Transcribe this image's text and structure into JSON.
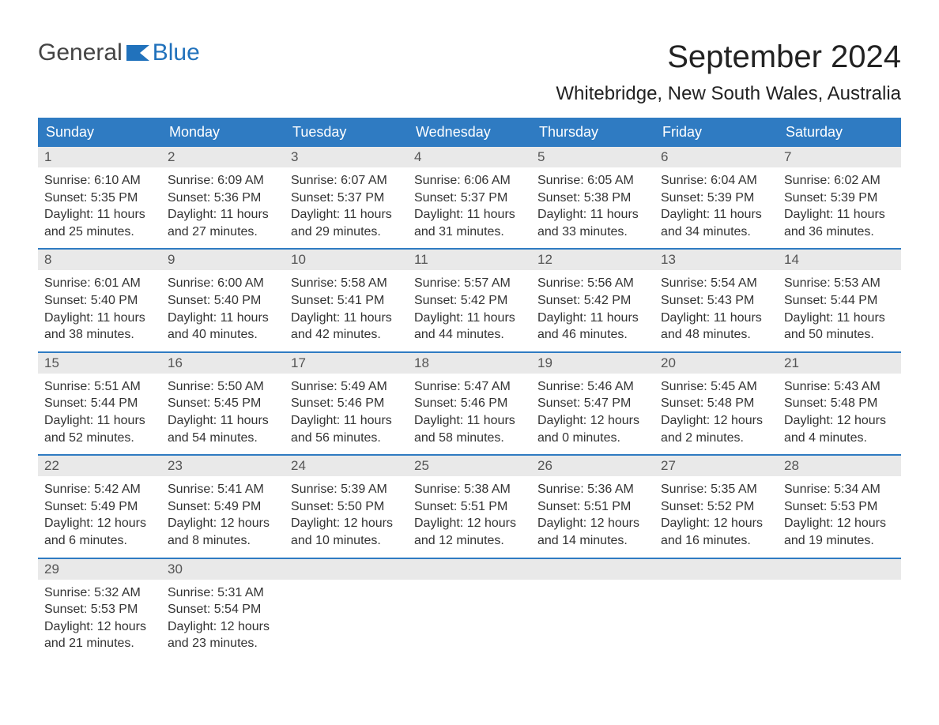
{
  "brand": {
    "general": "General",
    "blue": "Blue"
  },
  "title": "September 2024",
  "location": "Whitebridge, New South Wales, Australia",
  "colors": {
    "header_bg": "#2f7bc2",
    "header_text": "#ffffff",
    "daynum_bg": "#e9e9e9",
    "daynum_text": "#555555",
    "body_text": "#333333",
    "week_border": "#2f7bc2",
    "logo_general": "#444444",
    "logo_blue": "#2172bc",
    "background": "#ffffff"
  },
  "typography": {
    "title_fontsize": 40,
    "location_fontsize": 24,
    "dayhead_fontsize": 18,
    "daynum_fontsize": 17,
    "body_fontsize": 16
  },
  "day_headers": [
    "Sunday",
    "Monday",
    "Tuesday",
    "Wednesday",
    "Thursday",
    "Friday",
    "Saturday"
  ],
  "labels": {
    "sunrise": "Sunrise:",
    "sunset": "Sunset:",
    "daylight": "Daylight:"
  },
  "weeks": [
    [
      {
        "num": "1",
        "sunrise": "6:10 AM",
        "sunset": "5:35 PM",
        "daylight_h": "11",
        "daylight_m": "25"
      },
      {
        "num": "2",
        "sunrise": "6:09 AM",
        "sunset": "5:36 PM",
        "daylight_h": "11",
        "daylight_m": "27"
      },
      {
        "num": "3",
        "sunrise": "6:07 AM",
        "sunset": "5:37 PM",
        "daylight_h": "11",
        "daylight_m": "29"
      },
      {
        "num": "4",
        "sunrise": "6:06 AM",
        "sunset": "5:37 PM",
        "daylight_h": "11",
        "daylight_m": "31"
      },
      {
        "num": "5",
        "sunrise": "6:05 AM",
        "sunset": "5:38 PM",
        "daylight_h": "11",
        "daylight_m": "33"
      },
      {
        "num": "6",
        "sunrise": "6:04 AM",
        "sunset": "5:39 PM",
        "daylight_h": "11",
        "daylight_m": "34"
      },
      {
        "num": "7",
        "sunrise": "6:02 AM",
        "sunset": "5:39 PM",
        "daylight_h": "11",
        "daylight_m": "36"
      }
    ],
    [
      {
        "num": "8",
        "sunrise": "6:01 AM",
        "sunset": "5:40 PM",
        "daylight_h": "11",
        "daylight_m": "38"
      },
      {
        "num": "9",
        "sunrise": "6:00 AM",
        "sunset": "5:40 PM",
        "daylight_h": "11",
        "daylight_m": "40"
      },
      {
        "num": "10",
        "sunrise": "5:58 AM",
        "sunset": "5:41 PM",
        "daylight_h": "11",
        "daylight_m": "42"
      },
      {
        "num": "11",
        "sunrise": "5:57 AM",
        "sunset": "5:42 PM",
        "daylight_h": "11",
        "daylight_m": "44"
      },
      {
        "num": "12",
        "sunrise": "5:56 AM",
        "sunset": "5:42 PM",
        "daylight_h": "11",
        "daylight_m": "46"
      },
      {
        "num": "13",
        "sunrise": "5:54 AM",
        "sunset": "5:43 PM",
        "daylight_h": "11",
        "daylight_m": "48"
      },
      {
        "num": "14",
        "sunrise": "5:53 AM",
        "sunset": "5:44 PM",
        "daylight_h": "11",
        "daylight_m": "50"
      }
    ],
    [
      {
        "num": "15",
        "sunrise": "5:51 AM",
        "sunset": "5:44 PM",
        "daylight_h": "11",
        "daylight_m": "52"
      },
      {
        "num": "16",
        "sunrise": "5:50 AM",
        "sunset": "5:45 PM",
        "daylight_h": "11",
        "daylight_m": "54"
      },
      {
        "num": "17",
        "sunrise": "5:49 AM",
        "sunset": "5:46 PM",
        "daylight_h": "11",
        "daylight_m": "56"
      },
      {
        "num": "18",
        "sunrise": "5:47 AM",
        "sunset": "5:46 PM",
        "daylight_h": "11",
        "daylight_m": "58"
      },
      {
        "num": "19",
        "sunrise": "5:46 AM",
        "sunset": "5:47 PM",
        "daylight_h": "12",
        "daylight_m": "0"
      },
      {
        "num": "20",
        "sunrise": "5:45 AM",
        "sunset": "5:48 PM",
        "daylight_h": "12",
        "daylight_m": "2"
      },
      {
        "num": "21",
        "sunrise": "5:43 AM",
        "sunset": "5:48 PM",
        "daylight_h": "12",
        "daylight_m": "4"
      }
    ],
    [
      {
        "num": "22",
        "sunrise": "5:42 AM",
        "sunset": "5:49 PM",
        "daylight_h": "12",
        "daylight_m": "6"
      },
      {
        "num": "23",
        "sunrise": "5:41 AM",
        "sunset": "5:49 PM",
        "daylight_h": "12",
        "daylight_m": "8"
      },
      {
        "num": "24",
        "sunrise": "5:39 AM",
        "sunset": "5:50 PM",
        "daylight_h": "12",
        "daylight_m": "10"
      },
      {
        "num": "25",
        "sunrise": "5:38 AM",
        "sunset": "5:51 PM",
        "daylight_h": "12",
        "daylight_m": "12"
      },
      {
        "num": "26",
        "sunrise": "5:36 AM",
        "sunset": "5:51 PM",
        "daylight_h": "12",
        "daylight_m": "14"
      },
      {
        "num": "27",
        "sunrise": "5:35 AM",
        "sunset": "5:52 PM",
        "daylight_h": "12",
        "daylight_m": "16"
      },
      {
        "num": "28",
        "sunrise": "5:34 AM",
        "sunset": "5:53 PM",
        "daylight_h": "12",
        "daylight_m": "19"
      }
    ],
    [
      {
        "num": "29",
        "sunrise": "5:32 AM",
        "sunset": "5:53 PM",
        "daylight_h": "12",
        "daylight_m": "21"
      },
      {
        "num": "30",
        "sunrise": "5:31 AM",
        "sunset": "5:54 PM",
        "daylight_h": "12",
        "daylight_m": "23"
      },
      {
        "empty": true
      },
      {
        "empty": true
      },
      {
        "empty": true
      },
      {
        "empty": true
      },
      {
        "empty": true
      }
    ]
  ]
}
